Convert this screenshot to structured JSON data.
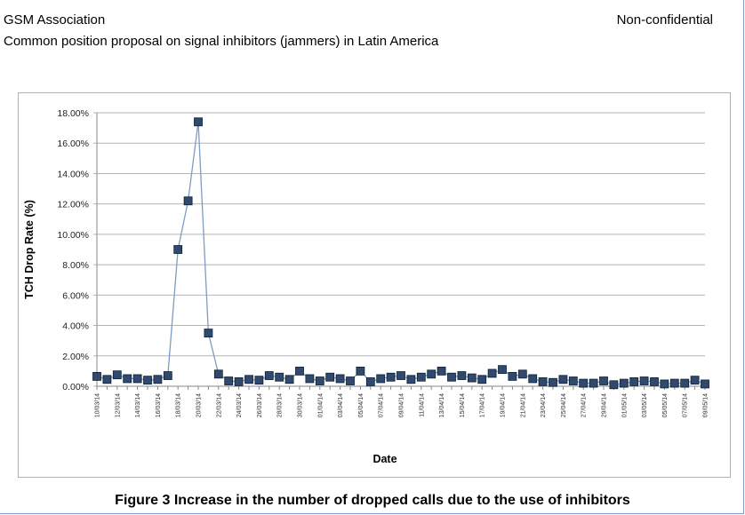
{
  "header": {
    "organization": "GSM Association",
    "classification": "Non-confidential",
    "document_title": "Common position proposal on signal inhibitors (jammers) in Latin America"
  },
  "caption": "Figure 3 Increase in the number of dropped calls due to the use of inhibitors",
  "colors": {
    "line": "#7e9cc4",
    "marker_fill": "#2f4a6e",
    "marker_stroke": "#0f1e33",
    "grid": "#b5b5b5"
  },
  "chart_data": {
    "type": "line",
    "title": "",
    "xlabel": "Date",
    "ylabel": "TCH Drop Rate (%)",
    "ylim": [
      0,
      18
    ],
    "grid": true,
    "legend": "none",
    "yticks": [
      "0.00%",
      "2.00%",
      "4.00%",
      "6.00%",
      "8.00%",
      "10.00%",
      "12.00%",
      "14.00%",
      "16.00%",
      "18.00%"
    ],
    "x_tick_labels": [
      "10/03/14",
      "12/03/14",
      "14/03/14",
      "16/03/14",
      "18/03/14",
      "20/03/14",
      "22/03/14",
      "24/03/14",
      "26/03/14",
      "28/03/14",
      "30/03/14",
      "01/04/14",
      "03/04/14",
      "05/04/14",
      "07/04/14",
      "09/04/14",
      "11/04/14",
      "13/04/14",
      "15/04/14",
      "17/04/14",
      "19/04/14",
      "21/04/14",
      "23/04/14",
      "25/04/14",
      "27/04/14",
      "29/04/14",
      "01/05/14",
      "03/05/14",
      "05/05/14",
      "07/05/14",
      "09/05/14"
    ],
    "series": [
      {
        "values": [
          0.65,
          0.45,
          0.75,
          0.5,
          0.5,
          0.4,
          0.45,
          0.7,
          9.0,
          12.2,
          17.4,
          3.5,
          0.8,
          0.35,
          0.3,
          0.45,
          0.4,
          0.7,
          0.6,
          0.45,
          1.0,
          0.5,
          0.35,
          0.6,
          0.5,
          0.35,
          1.0,
          0.3,
          0.5,
          0.6,
          0.7,
          0.45,
          0.6,
          0.8,
          1.0,
          0.6,
          0.7,
          0.55,
          0.45,
          0.85,
          1.1,
          0.65,
          0.8,
          0.5,
          0.3,
          0.25,
          0.45,
          0.35,
          0.2,
          0.2,
          0.35,
          0.1,
          0.2,
          0.3,
          0.35,
          0.3,
          0.15,
          0.2,
          0.2,
          0.4,
          0.15
        ]
      }
    ]
  }
}
